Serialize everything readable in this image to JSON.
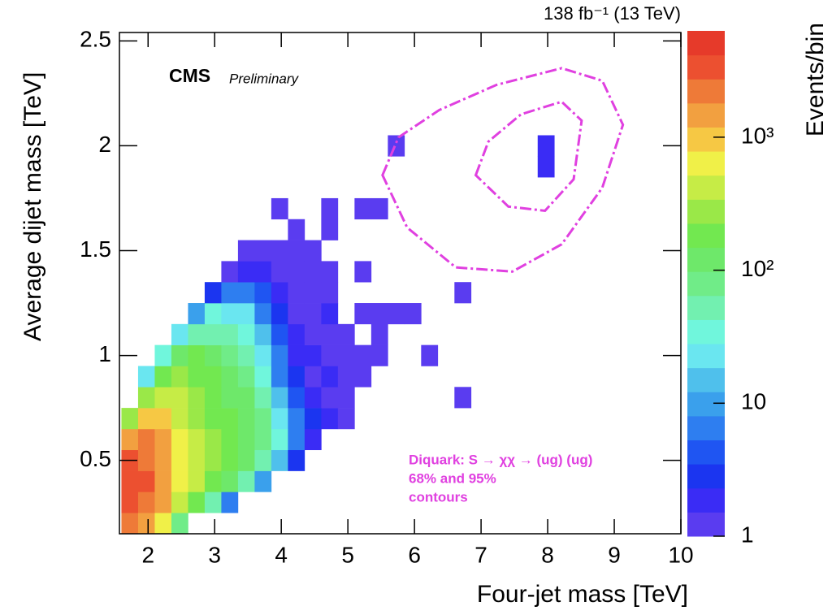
{
  "chart_data": {
    "type": "heatmap",
    "title": "138 fb⁻¹ (13 TeV)",
    "brand": "CMS",
    "status": "Preliminary",
    "x_label": "Four-jet mass [TeV]",
    "y_label": "Average dijet mass [TeV]",
    "z_label": "Events/bin",
    "annotations": [
      "Diquark: S → χχ → (ug) (ug)",
      "68% and 95%",
      "contours"
    ],
    "annotation_color": "#e040e0",
    "xlim": [
      1.57,
      10
    ],
    "ylim": [
      0.15,
      2.54
    ],
    "zlim": [
      1,
      6300
    ],
    "log_z": true,
    "xticks": [
      2,
      3,
      4,
      5,
      6,
      7,
      8,
      9,
      10
    ],
    "yticks": [
      0.5,
      1,
      1.5,
      2,
      2.5
    ],
    "zticks": [
      1,
      10,
      {
        "value": 100,
        "label": "10²"
      },
      {
        "value": 1000,
        "label": "10³"
      }
    ],
    "colorscale": [
      "#5a3cf0",
      "#3a2cf5",
      "#1b35f0",
      "#1f55f2",
      "#2e7ef0",
      "#3aa0ec",
      "#4fc0ec",
      "#6ae6f0",
      "#70f6dc",
      "#72f0b0",
      "#70ec88",
      "#6ee86a",
      "#72e850",
      "#9ae848",
      "#c6ec46",
      "#f0f048",
      "#f6c844",
      "#f2a040",
      "#ee7a38",
      "#ec5030",
      "#e63a2a"
    ],
    "x_edges": [
      1.6,
      1.85,
      2.1,
      2.35,
      2.6,
      2.85,
      3.1,
      3.35,
      3.6,
      3.85,
      4.1,
      4.35,
      4.6,
      4.85,
      5.1,
      5.35,
      5.6,
      5.85,
      6.1,
      6.35,
      6.6,
      6.85,
      7.1,
      7.35,
      7.6,
      7.85,
      8.1
    ],
    "y_edges": [
      0.15,
      0.25,
      0.35,
      0.45,
      0.55,
      0.65,
      0.75,
      0.85,
      0.95,
      1.05,
      1.15,
      1.25,
      1.35,
      1.45,
      1.55,
      1.65,
      1.75,
      1.85,
      1.95,
      2.05,
      2.15
    ],
    "z": [
      [
        2000,
        1500,
        600,
        80,
        null,
        null,
        null,
        null,
        null,
        null,
        null,
        null,
        null,
        null,
        null,
        null,
        null,
        null,
        null,
        null,
        null,
        null,
        null,
        null,
        null,
        null
      ],
      [
        3000,
        2500,
        1200,
        500,
        200,
        60,
        8,
        null,
        null,
        null,
        null,
        null,
        null,
        null,
        null,
        null,
        null,
        null,
        null,
        null,
        null,
        null,
        null,
        null,
        null,
        null
      ],
      [
        3500,
        3000,
        1500,
        700,
        350,
        200,
        120,
        50,
        10,
        null,
        null,
        null,
        null,
        null,
        null,
        null,
        null,
        null,
        null,
        null,
        null,
        null,
        null,
        null,
        null,
        null
      ],
      [
        3000,
        2500,
        1500,
        700,
        400,
        250,
        180,
        120,
        60,
        15,
        3,
        null,
        null,
        null,
        null,
        null,
        null,
        null,
        null,
        null,
        null,
        null,
        null,
        null,
        null,
        null
      ],
      [
        1500,
        2000,
        1200,
        600,
        350,
        250,
        180,
        130,
        90,
        30,
        8,
        2,
        null,
        null,
        null,
        null,
        null,
        null,
        null,
        null,
        null,
        null,
        null,
        null,
        null,
        null
      ],
      [
        300,
        1000,
        800,
        450,
        300,
        220,
        160,
        120,
        80,
        25,
        6,
        3,
        2,
        1,
        null,
        null,
        null,
        null,
        null,
        null,
        null,
        null,
        null,
        null,
        null,
        null
      ],
      [
        null,
        300,
        500,
        350,
        250,
        180,
        140,
        100,
        50,
        15,
        4,
        2,
        1,
        1,
        null,
        null,
        null,
        null,
        null,
        null,
        1,
        null,
        null,
        null,
        null,
        null
      ],
      [
        null,
        20,
        200,
        250,
        200,
        150,
        120,
        80,
        35,
        8,
        3,
        1,
        2,
        1,
        1,
        null,
        null,
        null,
        null,
        null,
        null,
        null,
        null,
        null,
        null,
        null
      ],
      [
        null,
        null,
        30,
        100,
        150,
        110,
        90,
        60,
        25,
        6,
        2,
        2,
        1,
        1,
        1,
        1,
        null,
        null,
        1,
        null,
        null,
        null,
        null,
        null,
        null,
        null
      ],
      [
        null,
        null,
        null,
        20,
        60,
        60,
        50,
        35,
        15,
        5,
        2,
        1,
        1,
        1,
        null,
        1,
        null,
        null,
        null,
        null,
        null,
        null,
        null,
        null,
        null,
        null
      ],
      [
        null,
        null,
        null,
        null,
        10,
        30,
        25,
        20,
        8,
        3,
        1,
        1,
        2,
        null,
        1,
        1,
        1,
        1,
        null,
        null,
        null,
        null,
        null,
        null,
        null,
        null
      ],
      [
        null,
        null,
        null,
        null,
        null,
        3,
        8,
        6,
        4,
        2,
        1,
        1,
        1,
        null,
        null,
        null,
        null,
        null,
        null,
        null,
        1,
        null,
        null,
        null,
        null,
        null
      ],
      [
        null,
        null,
        null,
        null,
        null,
        null,
        1,
        2,
        2,
        1,
        1,
        1,
        1,
        null,
        1,
        null,
        null,
        null,
        null,
        null,
        null,
        null,
        null,
        null,
        null,
        null
      ],
      [
        null,
        null,
        null,
        null,
        null,
        null,
        null,
        1,
        1,
        1,
        1,
        1,
        null,
        null,
        null,
        null,
        null,
        null,
        null,
        null,
        null,
        null,
        null,
        null,
        null,
        null
      ],
      [
        null,
        null,
        null,
        null,
        null,
        null,
        null,
        null,
        null,
        null,
        1,
        null,
        1,
        null,
        null,
        null,
        null,
        null,
        null,
        null,
        null,
        null,
        null,
        null,
        null,
        null
      ],
      [
        null,
        null,
        null,
        null,
        null,
        null,
        null,
        null,
        null,
        1,
        null,
        null,
        1,
        null,
        1,
        1,
        null,
        null,
        null,
        null,
        null,
        null,
        null,
        null,
        null,
        null
      ],
      [
        null,
        null,
        null,
        null,
        null,
        null,
        null,
        null,
        null,
        null,
        null,
        null,
        null,
        null,
        null,
        null,
        null,
        null,
        null,
        null,
        null,
        null,
        null,
        null,
        null,
        null
      ],
      [
        null,
        null,
        null,
        null,
        null,
        null,
        null,
        null,
        null,
        null,
        null,
        null,
        null,
        null,
        null,
        null,
        null,
        null,
        null,
        null,
        null,
        null,
        null,
        null,
        null,
        2
      ],
      [
        null,
        null,
        null,
        null,
        null,
        null,
        null,
        null,
        null,
        null,
        null,
        null,
        null,
        null,
        null,
        null,
        1,
        null,
        null,
        null,
        null,
        null,
        null,
        null,
        null,
        2
      ],
      [
        null,
        null,
        null,
        null,
        null,
        null,
        null,
        null,
        null,
        null,
        null,
        null,
        null,
        null,
        null,
        null,
        null,
        null,
        null,
        null,
        null,
        null,
        null,
        null,
        null,
        null
      ]
    ],
    "contours": [
      {
        "x": [
          5.52,
          5.76,
          6.37,
          7.23,
          8.21,
          8.82,
          9.13,
          8.82,
          8.21,
          7.47,
          6.62,
          5.89
        ],
        "y": [
          1.86,
          2.04,
          2.17,
          2.29,
          2.37,
          2.31,
          2.1,
          1.8,
          1.53,
          1.4,
          1.42,
          1.61
        ]
      },
      {
        "x": [
          6.92,
          7.11,
          7.6,
          8.21,
          8.51,
          8.39,
          7.96,
          7.41
        ],
        "y": [
          1.86,
          2.02,
          2.15,
          2.21,
          2.12,
          1.84,
          1.69,
          1.71
        ]
      }
    ]
  }
}
